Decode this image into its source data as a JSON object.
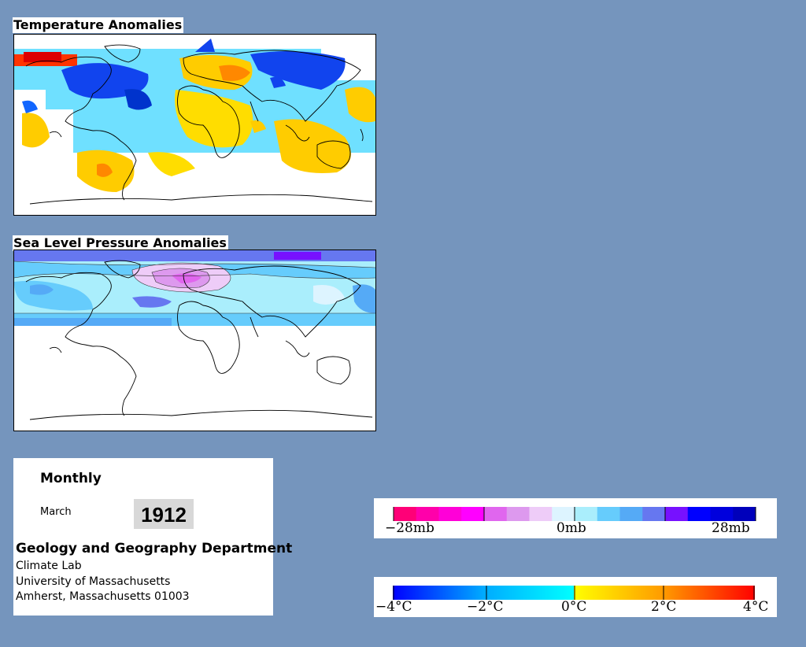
{
  "panels": {
    "temperature": {
      "title": "Temperature Anomalies"
    },
    "pressure": {
      "title": "Sea Level Pressure Anomalies"
    }
  },
  "info": {
    "period": "Monthly",
    "month": "March",
    "year": "1912",
    "department": "Geology and Geography Department",
    "address": [
      "Climate Lab",
      "University of Massachusetts",
      "Amherst, Massachusetts 01003"
    ]
  },
  "pressure_legend": {
    "labels": [
      "−28mb",
      "0mb",
      "28mb"
    ],
    "colors": [
      "#ff0077",
      "#ff00aa",
      "#ff00d8",
      "#ff00ff",
      "#e066ee",
      "#dd99ee",
      "#eeccf8",
      "#ddf4ff",
      "#aaeefc",
      "#66ccfc",
      "#55aaf6",
      "#6677f0",
      "#7711ff",
      "#0000ff",
      "#0000dd",
      "#0000bb"
    ]
  },
  "temperature_legend": {
    "labels": [
      "−4°C",
      "−2°C",
      "0°C",
      "2°C",
      "4°C"
    ],
    "stops": [
      "#0000ff",
      "#00aaff",
      "#00ffff",
      "#ffff00",
      "#ff9900",
      "#ff0000"
    ]
  }
}
